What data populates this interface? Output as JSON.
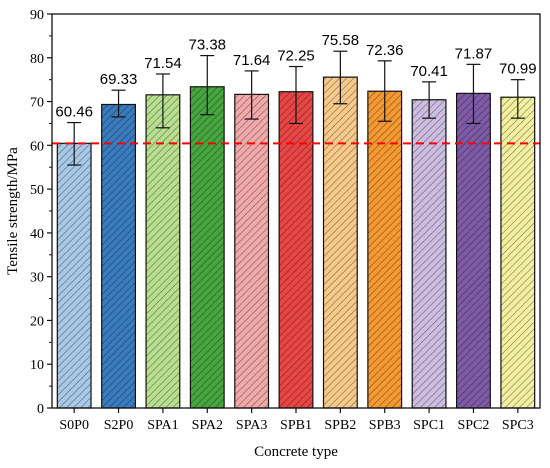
{
  "chart_data": {
    "type": "bar",
    "xlabel": "Concrete type",
    "ylabel": "Tensile strength/MPa",
    "ylim": [
      0,
      90
    ],
    "yticks": [
      0,
      10,
      20,
      30,
      40,
      50,
      60,
      70,
      80,
      90
    ],
    "grid": false,
    "reference_line": {
      "value": 60.46,
      "style": "dashed",
      "color": "#ff0000"
    },
    "categories": [
      "S0P0",
      "S2P0",
      "SPA1",
      "SPA2",
      "SPA3",
      "SPB1",
      "SPB2",
      "SPB3",
      "SPC1",
      "SPC2",
      "SPC3"
    ],
    "values": [
      60.46,
      69.33,
      71.54,
      73.38,
      71.64,
      72.25,
      75.58,
      72.36,
      70.41,
      71.87,
      70.99
    ],
    "value_labels": [
      "60.46",
      "69.33",
      "71.54",
      "73.38",
      "71.64",
      "72.25",
      "75.58",
      "72.36",
      "70.41",
      "71.87",
      "70.99"
    ],
    "error_bars": [
      [
        55.5,
        65.2
      ],
      [
        66.5,
        72.6
      ],
      [
        64.0,
        76.3
      ],
      [
        67.0,
        80.5
      ],
      [
        66.0,
        77.0
      ],
      [
        65.0,
        78.0
      ],
      [
        69.5,
        81.5
      ],
      [
        65.5,
        79.3
      ],
      [
        66.2,
        74.5
      ],
      [
        65.0,
        78.5
      ],
      [
        66.2,
        75.0
      ]
    ],
    "colors": [
      "#a7c8e6",
      "#3a7bbf",
      "#b8df8f",
      "#47a63f",
      "#f2a9a9",
      "#e84545",
      "#f7c98a",
      "#f59a33",
      "#cdbde0",
      "#7e5aa6",
      "#f2f0a0"
    ],
    "bar_style": "hatched"
  }
}
